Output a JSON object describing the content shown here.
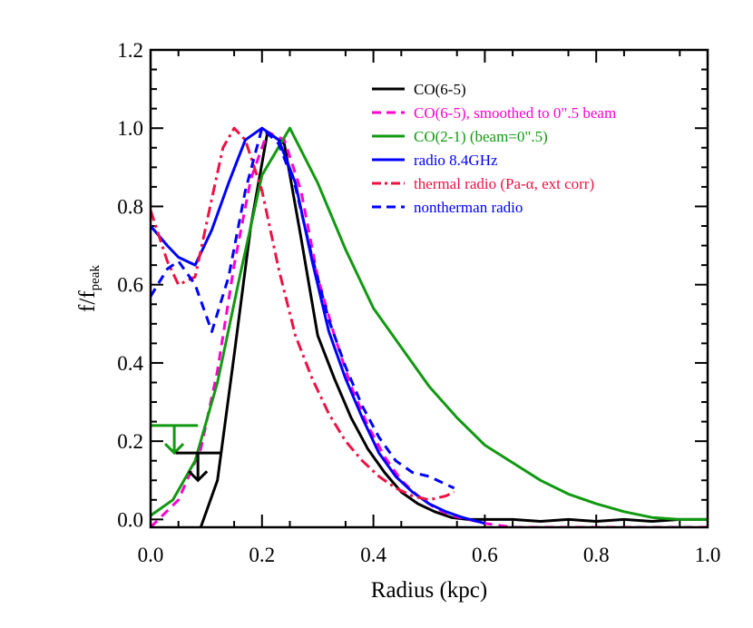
{
  "chart_data": {
    "type": "line",
    "xlabel": "Radius (kpc)",
    "ylabel": "f/f",
    "ylabel_sub": "peak",
    "xlim": [
      0.0,
      1.0
    ],
    "ylim": [
      -0.02,
      1.2
    ],
    "xticks": [
      "0.0",
      "0.2",
      "0.4",
      "0.6",
      "0.8",
      "1.0"
    ],
    "xtick_values": [
      0.0,
      0.2,
      0.4,
      0.6,
      0.8,
      1.0
    ],
    "yticks": [
      "0.0",
      "0.2",
      "0.4",
      "0.6",
      "0.8",
      "1.0",
      "1.2"
    ],
    "ytick_values": [
      0.0,
      0.2,
      0.4,
      0.6,
      0.8,
      1.0,
      1.2
    ],
    "legend_position": "top-right",
    "series": [
      {
        "name": "CO(6-5)",
        "color": "#000000",
        "dash": "solid",
        "x": [
          0.09,
          0.12,
          0.15,
          0.18,
          0.21,
          0.24,
          0.27,
          0.3,
          0.33,
          0.36,
          0.39,
          0.42,
          0.45,
          0.48,
          0.51,
          0.54,
          0.57,
          0.6,
          0.65,
          0.7,
          0.75,
          0.8,
          0.85,
          0.9,
          0.95,
          1.0
        ],
        "y": [
          -0.02,
          0.1,
          0.42,
          0.75,
          0.99,
          0.96,
          0.72,
          0.47,
          0.36,
          0.26,
          0.18,
          0.12,
          0.07,
          0.04,
          0.02,
          0.005,
          0.0,
          0.0,
          0.0,
          -0.005,
          0.0,
          -0.005,
          0.0,
          -0.005,
          0.0,
          0.0
        ]
      },
      {
        "name": "CO(6-5), smoothed to 0\".5 beam",
        "color": "#ff00cc",
        "dash": "dashed",
        "x": [
          0.0,
          0.05,
          0.09,
          0.12,
          0.15,
          0.18,
          0.21,
          0.24,
          0.27,
          0.3,
          0.33,
          0.36,
          0.39,
          0.42,
          0.45,
          0.48,
          0.51,
          0.54,
          0.57,
          0.6,
          0.65,
          0.7,
          0.8,
          0.9,
          0.95,
          1.0
        ],
        "y": [
          -0.02,
          0.05,
          0.18,
          0.38,
          0.65,
          0.87,
          0.99,
          0.97,
          0.84,
          0.62,
          0.47,
          0.34,
          0.24,
          0.16,
          0.1,
          0.06,
          0.03,
          0.01,
          0.0,
          -0.01,
          -0.02,
          -0.02,
          -0.02,
          -0.02,
          -0.02,
          -0.02
        ]
      },
      {
        "name": "CO(2-1) (beam=0\".5)",
        "color": "#119911",
        "dash": "solid",
        "x": [
          0.0,
          0.04,
          0.08,
          0.12,
          0.16,
          0.2,
          0.25,
          0.3,
          0.35,
          0.4,
          0.45,
          0.5,
          0.55,
          0.6,
          0.65,
          0.7,
          0.75,
          0.8,
          0.85,
          0.9,
          0.95,
          1.0
        ],
        "y": [
          0.01,
          0.05,
          0.15,
          0.35,
          0.62,
          0.88,
          1.0,
          0.86,
          0.69,
          0.54,
          0.44,
          0.34,
          0.26,
          0.19,
          0.145,
          0.1,
          0.065,
          0.04,
          0.02,
          0.005,
          0.0,
          0.0
        ]
      },
      {
        "name": "radio 8.4GHz",
        "color": "#0000ff",
        "dash": "solid",
        "x": [
          0.0,
          0.03,
          0.05,
          0.08,
          0.11,
          0.14,
          0.17,
          0.2,
          0.23,
          0.26,
          0.29,
          0.32,
          0.35,
          0.38,
          0.41,
          0.44,
          0.47,
          0.5,
          0.53,
          0.56,
          0.6
        ],
        "y": [
          0.75,
          0.7,
          0.67,
          0.65,
          0.74,
          0.86,
          0.97,
          1.0,
          0.97,
          0.86,
          0.66,
          0.48,
          0.36,
          0.26,
          0.17,
          0.11,
          0.07,
          0.04,
          0.02,
          0.005,
          -0.01
        ]
      },
      {
        "name": "thermal radio (Pa-α, ext corr)",
        "color": "#ee1144",
        "dash": "dashdot",
        "x": [
          0.0,
          0.03,
          0.05,
          0.08,
          0.11,
          0.13,
          0.15,
          0.17,
          0.2,
          0.23,
          0.26,
          0.29,
          0.32,
          0.35,
          0.38,
          0.41,
          0.44,
          0.47,
          0.5,
          0.53,
          0.545
        ],
        "y": [
          0.79,
          0.66,
          0.6,
          0.62,
          0.82,
          0.95,
          1.0,
          0.97,
          0.84,
          0.64,
          0.47,
          0.36,
          0.27,
          0.2,
          0.15,
          0.11,
          0.08,
          0.06,
          0.05,
          0.06,
          0.07
        ]
      },
      {
        "name": "nontherman radio",
        "color": "#0000ff",
        "dash": "dashed",
        "x": [
          0.0,
          0.03,
          0.05,
          0.08,
          0.11,
          0.14,
          0.17,
          0.2,
          0.23,
          0.26,
          0.29,
          0.32,
          0.35,
          0.38,
          0.41,
          0.44,
          0.47,
          0.5,
          0.53,
          0.545
        ],
        "y": [
          0.57,
          0.64,
          0.66,
          0.6,
          0.48,
          0.62,
          0.84,
          1.0,
          0.96,
          0.85,
          0.67,
          0.51,
          0.39,
          0.29,
          0.21,
          0.15,
          0.12,
          0.11,
          0.09,
          0.08
        ]
      }
    ],
    "upper_limits": [
      {
        "color": "#119911",
        "x0": 0.0,
        "x1": 0.085,
        "y": 0.24,
        "arrow_to": 0.17
      },
      {
        "color": "#000000",
        "x0": 0.045,
        "x1": 0.125,
        "y": 0.17,
        "arrow_to": 0.1
      }
    ]
  }
}
